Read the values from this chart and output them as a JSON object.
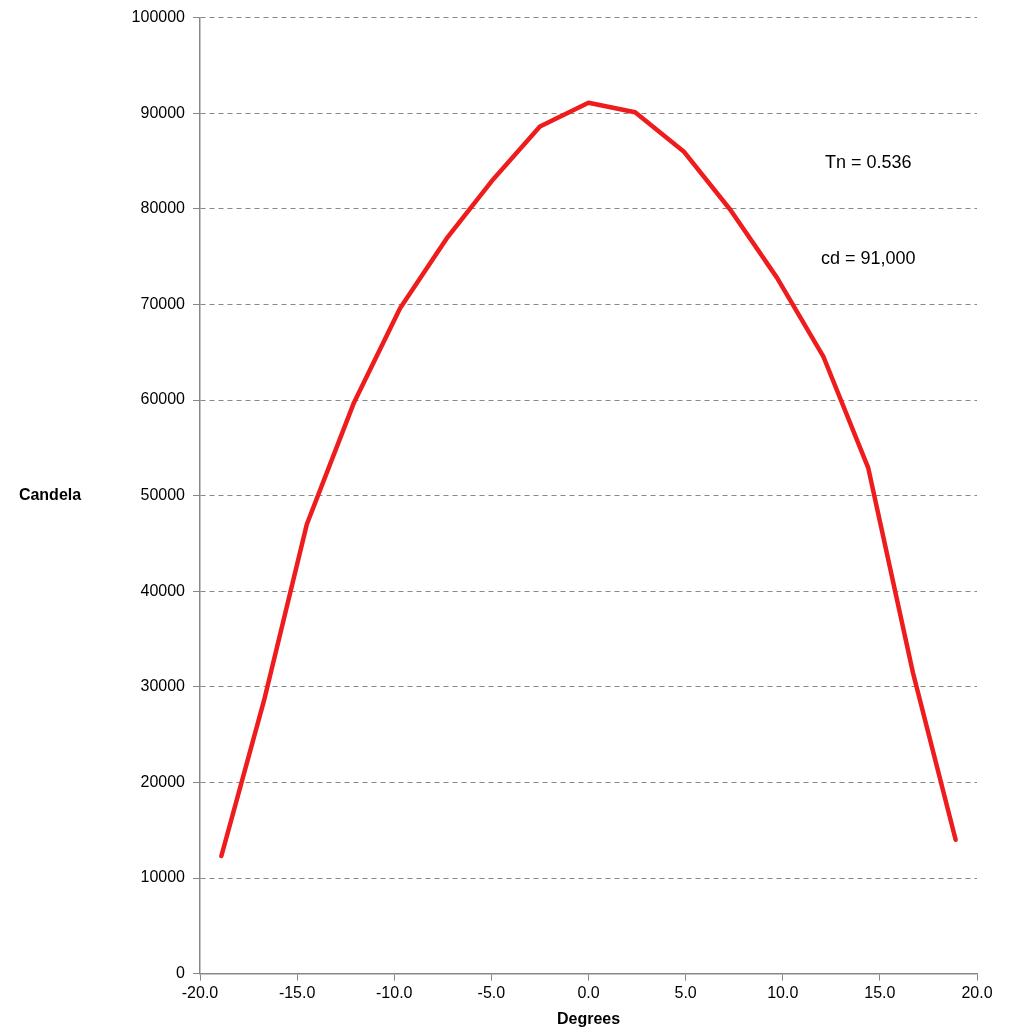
{
  "chart_data": {
    "type": "line",
    "xlabel": "Degrees",
    "ylabel": "Candela",
    "x": [
      -18.9,
      -16.7,
      -14.5,
      -12.1,
      -9.7,
      -7.3,
      -4.9,
      -2.5,
      0,
      2.4,
      4.9,
      7.3,
      9.7,
      12.1,
      14.4,
      16.7,
      18.9
    ],
    "series": [
      {
        "color": "#ee1c1c",
        "values": [
          12300,
          28600,
          47000,
          59600,
          69600,
          76900,
          83100,
          88600,
          91100,
          90100,
          86000,
          79900,
          72800,
          64500,
          52900,
          31500,
          14000
        ]
      }
    ],
    "xlim": [
      -20,
      20
    ],
    "xticks": [
      {
        "value": -20,
        "label": "-20.0"
      },
      {
        "value": -15,
        "label": "-15.0"
      },
      {
        "value": -10,
        "label": "-10.0"
      },
      {
        "value": -5,
        "label": "-5.0"
      },
      {
        "value": 0,
        "label": "0.0"
      },
      {
        "value": 5,
        "label": "5.0"
      },
      {
        "value": 10,
        "label": "10.0"
      },
      {
        "value": 15,
        "label": "15.0"
      },
      {
        "value": 20,
        "label": "20.0"
      }
    ],
    "ylim": [
      0,
      100000
    ],
    "yticks": [
      0,
      10000,
      20000,
      30000,
      40000,
      50000,
      60000,
      70000,
      80000,
      90000,
      100000
    ],
    "grid": "y",
    "line_style": "solid",
    "marker": "none",
    "legend": false,
    "annotations": [
      "Tn = 0.536",
      "cd = 91,000"
    ]
  }
}
